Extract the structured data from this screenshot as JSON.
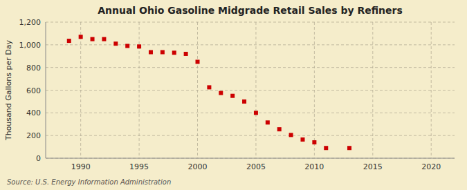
{
  "chart_data": {
    "type": "scatter",
    "title": "Annual Ohio Gasoline Midgrade Retail Sales by Refiners",
    "ylabel": "Thousand Gallons per Day",
    "annotations": [
      "Source: U.S. Energy Information Administration"
    ],
    "x": [
      1989,
      1990,
      1991,
      1992,
      1993,
      1994,
      1995,
      1996,
      1997,
      1998,
      1999,
      2000,
      2001,
      2002,
      2003,
      2004,
      2005,
      2006,
      2007,
      2008,
      2009,
      2010,
      2011,
      2013
    ],
    "values": [
      1035,
      1070,
      1050,
      1050,
      1010,
      990,
      985,
      935,
      935,
      930,
      920,
      850,
      625,
      575,
      550,
      500,
      400,
      315,
      255,
      205,
      165,
      140,
      90,
      90
    ],
    "color": "#cc0000",
    "marker": "square",
    "xlim": [
      1987,
      2022
    ],
    "ylim": [
      0,
      1200
    ],
    "xticks": [
      1990,
      1995,
      2000,
      2005,
      2010,
      2015,
      2020
    ],
    "yticks": [
      0,
      200,
      400,
      600,
      800,
      {
        "value": 1000,
        "label": "1,000"
      },
      {
        "value": 1200,
        "label": "1,200"
      }
    ],
    "grid": true
  }
}
